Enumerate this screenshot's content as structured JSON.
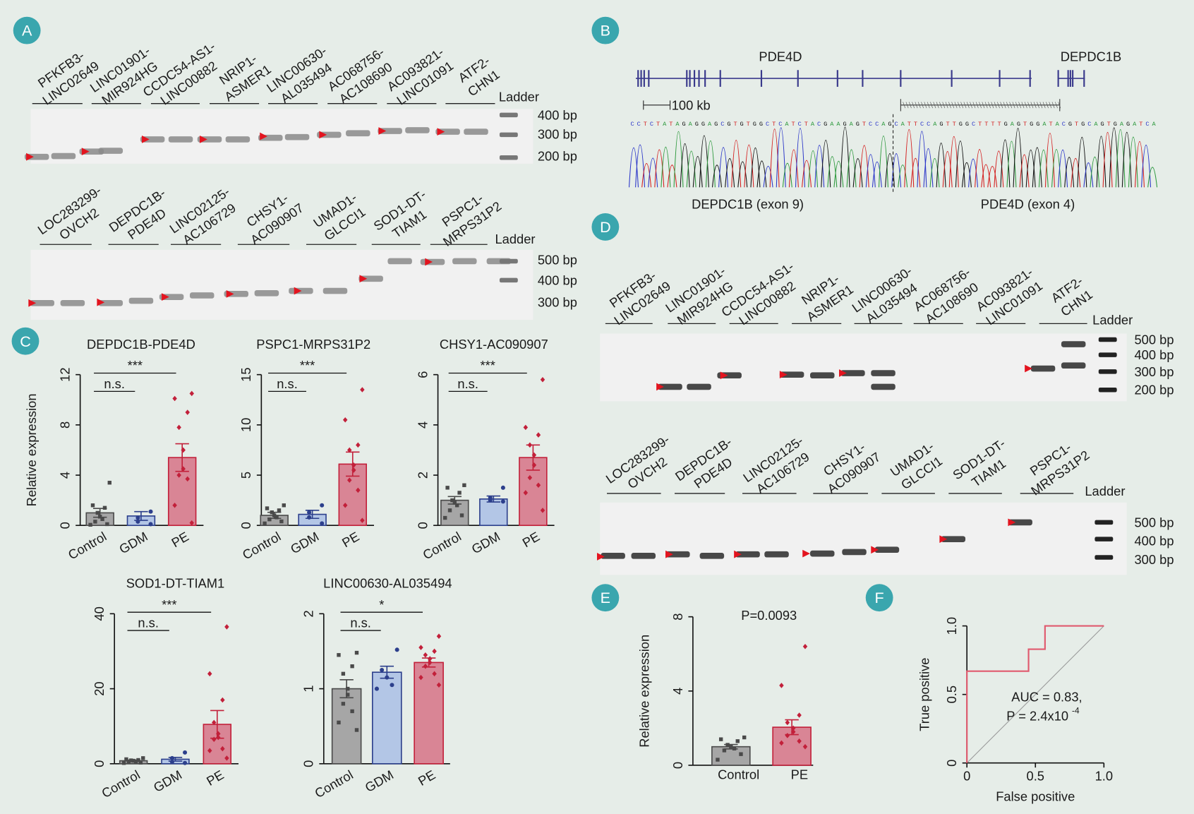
{
  "panel_labels": [
    "A",
    "B",
    "C",
    "D",
    "E",
    "F"
  ],
  "gel_a_top": {
    "lanes": [
      [
        "PFKFB3-",
        "LINC02649"
      ],
      [
        "LINC01901-",
        "MIR924HG"
      ],
      [
        "CCDC54-AS1-",
        "LINC00882"
      ],
      [
        "NRIP1-",
        "ASMER1"
      ],
      [
        "LINC00630-",
        "AL035494"
      ],
      [
        "AC068756-",
        "AC108690"
      ],
      [
        "AC093821-",
        "LINC01091"
      ],
      [
        "ATF2-",
        "CHN1"
      ]
    ],
    "ladder": "Ladder",
    "sizes": [
      "400 bp",
      "300 bp",
      "200 bp"
    ]
  },
  "gel_a_bottom": {
    "lanes": [
      [
        "LOC283299-",
        "OVCH2"
      ],
      [
        "DEPDC1B-",
        "PDE4D"
      ],
      [
        "LINC02125-",
        "AC106729"
      ],
      [
        "CHSY1-",
        "AC090907"
      ],
      [
        "UMAD1-",
        "GLCCI1"
      ],
      [
        "SOD1-DT-",
        "TIAM1"
      ],
      [
        "PSPC1-",
        "MRPS31P2"
      ]
    ],
    "ladder": "Ladder",
    "sizes": [
      "500 bp",
      "400 bp",
      "300 bp"
    ]
  },
  "gel_d_top": {
    "lanes": [
      [
        "PFKFB3-",
        "LINC02649"
      ],
      [
        "LINC01901-",
        "MIR924HG"
      ],
      [
        "CCDC54-AS1-",
        "LINC00882"
      ],
      [
        "NRIP1-",
        "ASMER1"
      ],
      [
        "LINC00630-",
        "AL035494"
      ],
      [
        "AC068756-",
        "AC108690"
      ],
      [
        "AC093821-",
        "LINC01091"
      ],
      [
        "ATF2-",
        "CHN1"
      ]
    ],
    "ladder": "Ladder",
    "sizes": [
      "500 bp",
      "400 bp",
      "300 bp",
      "200 bp"
    ]
  },
  "gel_d_bottom": {
    "lanes": [
      [
        "LOC283299-",
        "OVCH2"
      ],
      [
        "DEPDC1B-",
        "PDE4D"
      ],
      [
        "LINC02125-",
        "AC106729"
      ],
      [
        "CHSY1-",
        "AC090907"
      ],
      [
        "UMAD1-",
        "GLCCI1"
      ],
      [
        "SOD1-DT-",
        "TIAM1"
      ],
      [
        "PSPC1-",
        "MRPS31P2"
      ]
    ],
    "ladder": "Ladder",
    "sizes": [
      "500 bp",
      "400 bp",
      "300 bp"
    ]
  },
  "panel_b": {
    "genes": [
      "PDE4D",
      "DEPDC1B"
    ],
    "scale": "100 kb",
    "sequence": "CCTCTATAGAGGAGCGTGTGGCTCATCTACGAAGAGTCCAGCATTCCAGTTGGCTTTTGAGTGGATACGTGCAGTGAGATCA",
    "exon_left": "DEPDC1B (exon 9)",
    "exon_right": "PDE4D (exon 4)"
  },
  "chart_data": [
    {
      "type": "bar",
      "title": "DEPDC1B-PDE4D",
      "ylabel": "Relative expression",
      "categories": [
        "Control",
        "GDM",
        "PE"
      ],
      "values": [
        1.0,
        0.75,
        5.4
      ],
      "errors": [
        0.35,
        0.35,
        1.1
      ],
      "points": [
        [
          3.4,
          1.6,
          1.4,
          1.0,
          0.7,
          0.5,
          0.3,
          0.1,
          0.05
        ],
        [
          1.1,
          0.6,
          0.3,
          0.1
        ],
        [
          10.5,
          10.1,
          9.0,
          7.8,
          6.0,
          4.5,
          4.0,
          3.7,
          1.6,
          0.2
        ]
      ],
      "colors": [
        "#a6a6a6",
        "#b3c6e6",
        "#d98595"
      ],
      "ylim": [
        0,
        12
      ],
      "yticks": [
        0,
        4,
        8,
        12
      ],
      "comparisons": [
        {
          "label": "***",
          "between": [
            "Control",
            "PE"
          ]
        },
        {
          "label": "n.s.",
          "between": [
            "Control",
            "GDM"
          ]
        }
      ]
    },
    {
      "type": "bar",
      "title": "PSPC1-MRPS31P2",
      "categories": [
        "Control",
        "GDM",
        "PE"
      ],
      "values": [
        1.0,
        1.1,
        6.1
      ],
      "errors": [
        0.3,
        0.4,
        1.2
      ],
      "points": [
        [
          2.0,
          1.7,
          1.5,
          1.3,
          1.0,
          0.8,
          0.6,
          0.4,
          0.2
        ],
        [
          2.0,
          1.3,
          0.8,
          0.2
        ],
        [
          13.5,
          10.5,
          8.0,
          7.5,
          6.0,
          5.5,
          4.5,
          3.5,
          2.0,
          0.5
        ]
      ],
      "colors": [
        "#a6a6a6",
        "#b3c6e6",
        "#d98595"
      ],
      "ylim": [
        0,
        15
      ],
      "yticks": [
        0,
        5,
        10,
        15
      ],
      "comparisons": [
        {
          "label": "***",
          "between": [
            "Control",
            "PE"
          ]
        },
        {
          "label": "n.s.",
          "between": [
            "Control",
            "GDM"
          ]
        }
      ]
    },
    {
      "type": "bar",
      "title": "CHSY1-AC090907",
      "categories": [
        "Control",
        "GDM",
        "PE"
      ],
      "values": [
        1.0,
        1.05,
        2.7
      ],
      "errors": [
        0.15,
        0.12,
        0.5
      ],
      "points": [
        [
          1.6,
          1.5,
          1.3,
          1.0,
          0.9,
          0.8,
          0.6,
          0.4,
          0.3
        ],
        [
          1.5,
          1.1,
          1.0,
          0.95
        ],
        [
          5.8,
          3.9,
          3.6,
          3.2,
          2.8,
          2.4,
          1.9,
          1.6,
          1.3,
          0.6
        ]
      ],
      "colors": [
        "#a6a6a6",
        "#b3c6e6",
        "#d98595"
      ],
      "ylim": [
        0,
        6
      ],
      "yticks": [
        0,
        2,
        4,
        6
      ],
      "comparisons": [
        {
          "label": "***",
          "between": [
            "Control",
            "PE"
          ]
        },
        {
          "label": "n.s.",
          "between": [
            "Control",
            "GDM"
          ]
        }
      ]
    },
    {
      "type": "bar",
      "title": "SOD1-DT-TIAM1",
      "categories": [
        "Control",
        "GDM",
        "PE"
      ],
      "values": [
        0.8,
        1.2,
        10.5
      ],
      "errors": [
        0.2,
        0.5,
        3.7
      ],
      "points": [
        [
          1.5,
          1.2,
          1.0,
          0.9,
          0.8,
          0.6,
          0.5,
          0.3,
          0.2
        ],
        [
          3.0,
          1.5,
          0.5,
          0.2
        ],
        [
          36.5,
          24,
          17,
          11,
          8,
          7,
          6.5,
          4,
          3.5,
          1.5
        ]
      ],
      "colors": [
        "#a6a6a6",
        "#b3c6e6",
        "#d98595"
      ],
      "ylim": [
        0,
        40
      ],
      "yticks": [
        0,
        20,
        40
      ],
      "comparisons": [
        {
          "label": "***",
          "between": [
            "Control",
            "PE"
          ]
        },
        {
          "label": "n.s.",
          "between": [
            "Control",
            "GDM"
          ]
        }
      ]
    },
    {
      "type": "bar",
      "title": "LINC00630-AL035494",
      "categories": [
        "Control",
        "GDM",
        "PE"
      ],
      "values": [
        1.0,
        1.22,
        1.35
      ],
      "errors": [
        0.12,
        0.08,
        0.06
      ],
      "points": [
        [
          1.48,
          1.45,
          1.3,
          1.2,
          1.0,
          0.92,
          0.8,
          0.7,
          0.55,
          0.45
        ],
        [
          1.52,
          1.25,
          1.15,
          1.05,
          1.0
        ],
        [
          1.7,
          1.55,
          1.5,
          1.45,
          1.4,
          1.35,
          1.3,
          1.2,
          1.15,
          1.05
        ]
      ],
      "colors": [
        "#a6a6a6",
        "#b3c6e6",
        "#d98595"
      ],
      "ylim": [
        0,
        2
      ],
      "yticks": [
        0,
        1,
        2
      ],
      "comparisons": [
        {
          "label": "*",
          "between": [
            "Control",
            "PE"
          ]
        },
        {
          "label": "n.s.",
          "between": [
            "Control",
            "GDM"
          ]
        }
      ]
    },
    {
      "type": "bar",
      "annotation": "P=0.0093",
      "ylabel": "Relative expression",
      "categories": [
        "Control",
        "PE"
      ],
      "values": [
        1.0,
        2.05
      ],
      "errors": [
        0.12,
        0.4
      ],
      "points": [
        [
          1.5,
          1.4,
          1.3,
          1.1,
          1.0,
          0.9,
          0.8,
          0.6,
          0.3
        ],
        [
          6.4,
          4.3,
          2.7,
          2.3,
          2.0,
          1.8,
          1.6,
          1.3,
          1.2,
          1.0
        ]
      ],
      "colors": [
        "#a6a6a6",
        "#d98595"
      ],
      "ylim": [
        0,
        8
      ],
      "yticks": [
        0,
        4,
        8
      ]
    },
    {
      "type": "line",
      "xlabel": "False positive",
      "ylabel": "True positive",
      "x": [
        0,
        0,
        0.45,
        0.45,
        0.57,
        0.57,
        1
      ],
      "values": [
        0,
        0.67,
        0.67,
        0.83,
        0.83,
        1,
        1
      ],
      "color": "#e05a6e",
      "xlim": [
        0,
        1
      ],
      "ylim": [
        0,
        1
      ],
      "xticks": [
        0,
        0.5,
        {
          "value": 1,
          "label": "1.0"
        }
      ],
      "yticks": [
        0,
        0.5,
        {
          "value": 1,
          "label": "1.0"
        }
      ],
      "auc": "AUC = 0.83,",
      "p_value": {
        "text": "P = 2.4x10",
        "exponent": "-4"
      }
    }
  ]
}
